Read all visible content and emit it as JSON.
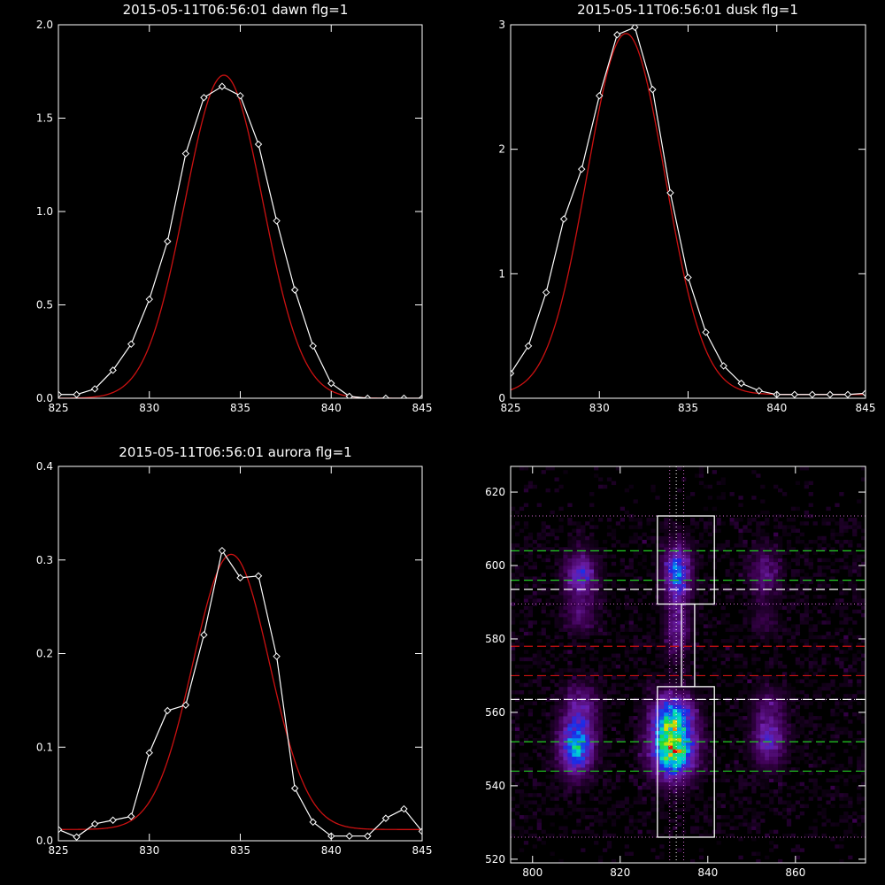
{
  "colors": {
    "background": "#000000",
    "foreground": "#ffffff",
    "fit": "#cc1111",
    "marker": "#ffffff"
  },
  "chart_data": [
    {
      "type": "line",
      "title": "2015-05-11T06:56:01 dawn flg=1",
      "xlim": [
        825,
        845
      ],
      "ylim": [
        0,
        2.0
      ],
      "xticks": [
        "825",
        "830",
        "835",
        "840",
        "845"
      ],
      "yticks": [
        "0.0",
        "0.5",
        "1.0",
        "1.5",
        "2.0"
      ],
      "series": [
        {
          "style": "line-markers",
          "x": [
            825,
            826,
            827,
            828,
            829,
            830,
            831,
            832,
            833,
            834,
            835,
            836,
            837,
            838,
            839,
            840,
            841,
            842,
            843,
            844,
            845
          ],
          "y": [
            0.02,
            0.02,
            0.05,
            0.15,
            0.29,
            0.53,
            0.84,
            1.31,
            1.61,
            1.67,
            1.62,
            1.36,
            0.95,
            0.58,
            0.28,
            0.08,
            0.01,
            0.0,
            0.0,
            0.0,
            0.0
          ]
        },
        {
          "style": "fit-curve",
          "gauss": {
            "amp": 1.73,
            "center": 834.1,
            "sigma": 2.15,
            "base": 0.0
          }
        }
      ]
    },
    {
      "type": "line",
      "title": "2015-05-11T06:56:01 dusk flg=1",
      "xlim": [
        825,
        845
      ],
      "ylim": [
        0,
        3
      ],
      "xticks": [
        "825",
        "830",
        "835",
        "840",
        "845"
      ],
      "yticks": [
        "0",
        "1",
        "2",
        "3"
      ],
      "series": [
        {
          "style": "line-markers",
          "x": [
            825,
            826,
            827,
            828,
            829,
            830,
            831,
            832,
            833,
            834,
            835,
            836,
            837,
            838,
            839,
            840,
            841,
            842,
            843,
            844,
            845
          ],
          "y": [
            0.2,
            0.42,
            0.85,
            1.44,
            1.84,
            2.43,
            2.92,
            2.98,
            2.48,
            1.65,
            0.97,
            0.53,
            0.26,
            0.12,
            0.06,
            0.03,
            0.03,
            0.03,
            0.03,
            0.03,
            0.04
          ]
        },
        {
          "style": "fit-curve",
          "gauss": {
            "amp": 2.9,
            "center": 831.5,
            "sigma": 2.2,
            "base": 0.03
          }
        }
      ]
    },
    {
      "type": "line",
      "title": "2015-05-11T06:56:01 aurora flg=1",
      "xlim": [
        825,
        845
      ],
      "ylim": [
        0,
        0.4
      ],
      "xticks": [
        "825",
        "830",
        "835",
        "840",
        "845"
      ],
      "yticks": [
        "0.0",
        "0.1",
        "0.2",
        "0.3",
        "0.4"
      ],
      "series": [
        {
          "style": "line-markers",
          "x": [
            825,
            826,
            827,
            828,
            829,
            830,
            831,
            832,
            833,
            834,
            835,
            836,
            837,
            838,
            839,
            840,
            841,
            842,
            843,
            844,
            845
          ],
          "y": [
            0.012,
            0.004,
            0.018,
            0.022,
            0.026,
            0.094,
            0.139,
            0.145,
            0.22,
            0.31,
            0.281,
            0.283,
            0.197,
            0.056,
            0.02,
            0.005,
            0.005,
            0.005,
            0.024,
            0.034,
            0.01
          ]
        },
        {
          "style": "fit-curve",
          "gauss": {
            "amp": 0.294,
            "center": 834.5,
            "sigma": 2.1,
            "base": 0.012
          }
        }
      ]
    },
    {
      "type": "heatmap",
      "xlim": [
        795,
        876
      ],
      "ylim": [
        519,
        627
      ],
      "xticks": [
        "800",
        "820",
        "840",
        "860"
      ],
      "yticks": [
        "520",
        "540",
        "560",
        "580",
        "600",
        "620"
      ],
      "colormap": "rainbow",
      "blobs": [
        {
          "x": 811,
          "y": 597,
          "sx": 2.4,
          "sy": 4.5,
          "amp": 0.32
        },
        {
          "x": 811,
          "y": 586,
          "sx": 2.4,
          "sy": 3.0,
          "amp": 0.12
        },
        {
          "x": 833,
          "y": 598,
          "sx": 2.0,
          "sy": 5.0,
          "amp": 0.46
        },
        {
          "x": 833,
          "y": 583,
          "sx": 1.8,
          "sy": 5.0,
          "amp": 0.22
        },
        {
          "x": 853,
          "y": 598,
          "sx": 2.3,
          "sy": 4.5,
          "amp": 0.18
        },
        {
          "x": 853,
          "y": 585,
          "sx": 2.3,
          "sy": 3.0,
          "amp": 0.07
        },
        {
          "x": 810,
          "y": 551,
          "sx": 2.5,
          "sy": 5.0,
          "amp": 0.58
        },
        {
          "x": 811,
          "y": 562,
          "sx": 2.5,
          "sy": 4.0,
          "amp": 0.2
        },
        {
          "x": 832,
          "y": 551,
          "sx": 3.2,
          "sy": 5.5,
          "amp": 0.85
        },
        {
          "x": 832,
          "y": 560,
          "sx": 3.0,
          "sy": 4.0,
          "amp": 0.36
        },
        {
          "x": 854,
          "y": 553,
          "sx": 2.4,
          "sy": 5.0,
          "amp": 0.3
        },
        {
          "x": 854,
          "y": 563,
          "sx": 2.4,
          "sy": 3.0,
          "amp": 0.1
        }
      ],
      "boxes": [
        {
          "x": [
            828.5,
            841.5
          ],
          "y": [
            589.5,
            613.5
          ]
        },
        {
          "x": [
            828.5,
            841.5
          ],
          "y": [
            526,
            567
          ]
        },
        {
          "x": [
            834,
            837
          ],
          "y": [
            567,
            589.5
          ]
        }
      ],
      "dotted_h": [
        {
          "y": 613.5,
          "color": "#cc66cc"
        },
        {
          "y": 589.5,
          "color": "#cc66cc"
        },
        {
          "y": 526,
          "color": "#cc66cc"
        },
        {
          "y": 563.5,
          "color": "#ffffff"
        }
      ],
      "dotted_v": [
        {
          "x": 831.3,
          "color": "#cc66cc"
        },
        {
          "x": 832.8,
          "color": "#ffffff"
        },
        {
          "x": 834.5,
          "color": "#cc66cc"
        }
      ],
      "dashed_h": [
        {
          "y": 604,
          "color": "#22cc22"
        },
        {
          "y": 596,
          "color": "#22cc22"
        },
        {
          "y": 593.5,
          "color": "#ffffff"
        },
        {
          "y": 578,
          "color": "#cc1111"
        },
        {
          "y": 570,
          "color": "#cc1111"
        },
        {
          "y": 563.5,
          "color": "#ffffff"
        },
        {
          "y": 552,
          "color": "#22cc22"
        },
        {
          "y": 544,
          "color": "#22cc22"
        }
      ]
    }
  ]
}
